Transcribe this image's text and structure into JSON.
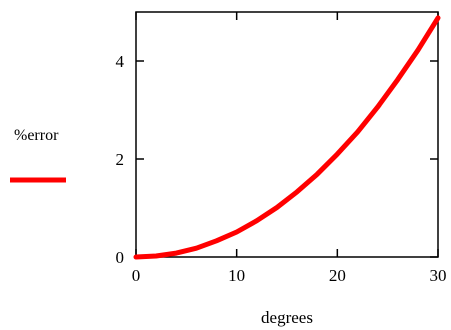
{
  "chart_data": {
    "type": "line",
    "xlabel": "degrees",
    "ylabel": "",
    "xlim": [
      0,
      30
    ],
    "ylim": [
      0,
      5
    ],
    "x_ticks": [
      0,
      10,
      20,
      30
    ],
    "y_ticks": [
      0,
      2,
      4
    ],
    "x_tick_labels": [
      "0",
      "10",
      "20",
      "30"
    ],
    "y_tick_labels": [
      "0",
      "2",
      "4"
    ],
    "grid": false,
    "legend": {
      "placement": "left",
      "entries": [
        "%error"
      ]
    },
    "series": [
      {
        "name": "%error",
        "color": "#ff0000",
        "x": [
          0,
          2,
          4,
          6,
          8,
          10,
          12,
          14,
          16,
          18,
          20,
          22,
          24,
          26,
          28,
          30
        ],
        "y": [
          0.0,
          0.02,
          0.08,
          0.18,
          0.33,
          0.51,
          0.74,
          1.01,
          1.33,
          1.69,
          2.1,
          2.55,
          3.06,
          3.62,
          4.22,
          4.88
        ]
      }
    ]
  }
}
